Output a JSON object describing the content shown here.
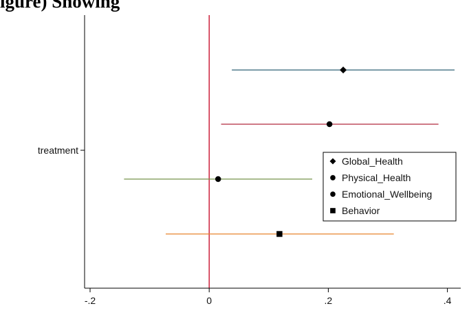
{
  "heading": "igure) Showing",
  "chart_data": {
    "type": "scatter",
    "subtype": "coefficient-plot",
    "title": "",
    "xlabel": "",
    "ylabel": "",
    "xlim": [
      -0.22,
      0.43
    ],
    "x_ticks": [
      -0.2,
      0,
      0.2,
      0.4
    ],
    "x_tick_labels": [
      "-.2",
      "0",
      ".2",
      ".4"
    ],
    "y_categories": [
      "treatment"
    ],
    "reference_line": {
      "x": 0,
      "color": "#c8102e"
    },
    "grid": false,
    "legend_position": "right",
    "series": [
      {
        "name": "Global_Health",
        "marker": "diamond",
        "color": "#2e6074",
        "estimate": 0.225,
        "ci": [
          0.038,
          0.412
        ]
      },
      {
        "name": "Physical_Health",
        "marker": "circle",
        "color": "#b0283c",
        "estimate": 0.202,
        "ci": [
          0.02,
          0.385
        ]
      },
      {
        "name": "Emotional_Wellbeing",
        "marker": "circle",
        "color": "#75924a",
        "estimate": 0.015,
        "ci": [
          -0.143,
          0.173
        ]
      },
      {
        "name": "Behavior",
        "marker": "square",
        "color": "#e8822a",
        "estimate": 0.118,
        "ci": [
          -0.073,
          0.31
        ]
      }
    ]
  }
}
